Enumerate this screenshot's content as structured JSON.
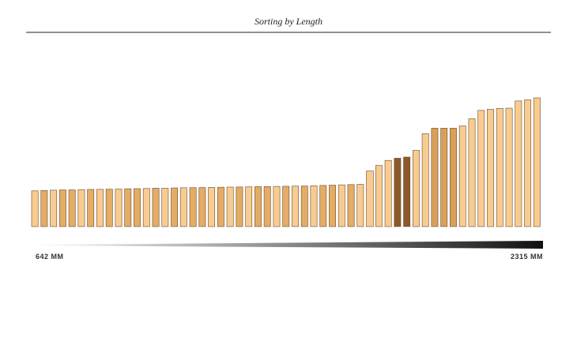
{
  "chart_data": {
    "type": "bar",
    "title": "Sorting by Length",
    "values": [
      642,
      650,
      655,
      660,
      660,
      665,
      668,
      670,
      672,
      675,
      680,
      682,
      685,
      690,
      690,
      695,
      698,
      700,
      702,
      705,
      708,
      710,
      712,
      715,
      718,
      720,
      722,
      725,
      728,
      730,
      735,
      740,
      745,
      750,
      755,
      760,
      1000,
      1100,
      1190,
      1230,
      1250,
      1370,
      1670,
      1770,
      1770,
      1770,
      1810,
      1940,
      2090,
      2110,
      2125,
      2130,
      2260,
      2280,
      2315
    ],
    "colors": [
      "#f8cc90",
      "#e4ac64",
      "#f8cc90",
      "#e4ac64",
      "#e4ac64",
      "#f8cc90",
      "#e4ac64",
      "#f8cc90",
      "#e4ac64",
      "#f8cc90",
      "#e4ac64",
      "#e4ac64",
      "#f8cc90",
      "#e4ac64",
      "#f8cc90",
      "#e4ac64",
      "#f8cc90",
      "#e4ac64",
      "#e4ac64",
      "#f8cc90",
      "#e4ac64",
      "#f8cc90",
      "#e4ac64",
      "#f8cc90",
      "#e4ac64",
      "#e4ac64",
      "#f8cc90",
      "#e4ac64",
      "#f8cc90",
      "#e4ac64",
      "#f8cc90",
      "#e4ac64",
      "#e4ac64",
      "#f8cc90",
      "#e4ac64",
      "#f8cc90",
      "#f8cc90",
      "#f8cc90",
      "#f8cc90",
      "#8b5a2b",
      "#8b5a2b",
      "#f8cc90",
      "#f8cc90",
      "#d9a05a",
      "#d9a05a",
      "#d9a05a",
      "#f8cc90",
      "#f8cc90",
      "#f8cc90",
      "#f8cc90",
      "#f8cc90",
      "#f8cc90",
      "#f8cc90",
      "#f8cc90",
      "#f8cc90"
    ],
    "ylim": [
      0,
      2315
    ],
    "legend_ticks": [
      {
        "value": 642,
        "label": "642 MM"
      },
      {
        "value": 2315,
        "label": "2315 MM"
      }
    ]
  }
}
